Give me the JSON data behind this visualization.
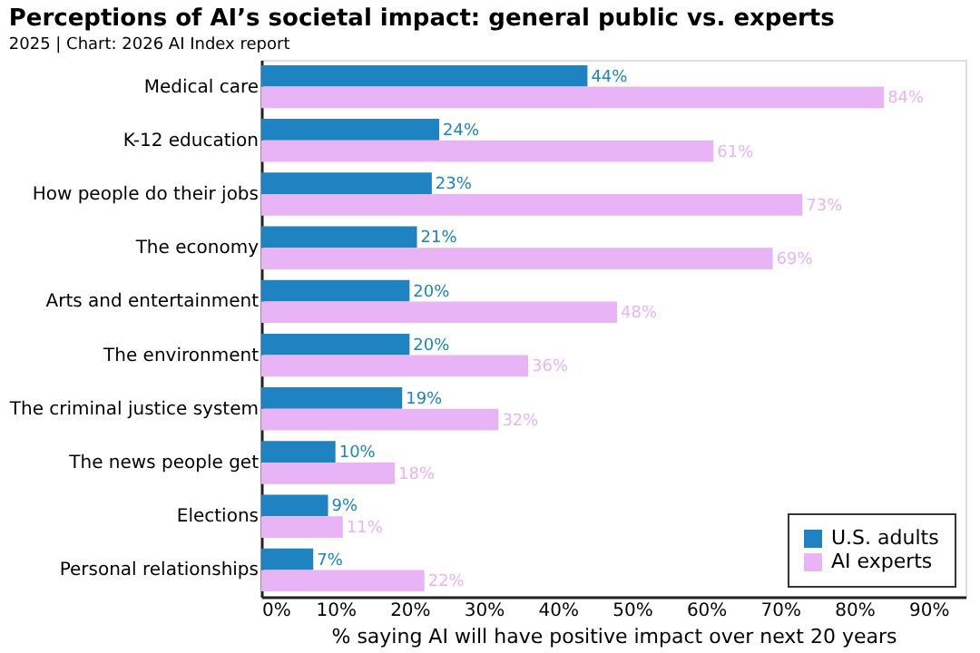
{
  "chart_data": {
    "type": "bar",
    "orientation": "horizontal",
    "title": "Perceptions of AI’s societal impact: general public vs. experts",
    "subtitle": "2025 | Chart: 2026 AI Index report",
    "xlabel": "% saying AI will have positive impact over next 20 years",
    "categories": [
      "Medical care",
      "K-12 education",
      "How people do their jobs",
      "The economy",
      "Arts and entertainment",
      "The environment",
      "The criminal justice system",
      "The news people get",
      "Elections",
      "Personal relationships"
    ],
    "series": [
      {
        "name": "U.S. adults",
        "color": "#1f83c2",
        "values": [
          44,
          24,
          23,
          21,
          20,
          20,
          19,
          10,
          9,
          7
        ],
        "value_labels": [
          "44%",
          "24%",
          "23%",
          "21%",
          "20%",
          "20%",
          "19%",
          "10%",
          "9%",
          "7%"
        ]
      },
      {
        "name": "AI experts",
        "color": "#e8b4f5",
        "values": [
          84,
          61,
          73,
          69,
          48,
          36,
          32,
          18,
          11,
          22
        ],
        "value_labels": [
          "84%",
          "61%",
          "73%",
          "69%",
          "48%",
          "36%",
          "32%",
          "18%",
          "11%",
          "22%"
        ]
      }
    ],
    "xlim": [
      0,
      95
    ],
    "xticks": [
      {
        "value": 0,
        "label": "0%"
      },
      {
        "value": 10,
        "label": "10%"
      },
      {
        "value": 20,
        "label": "20%"
      },
      {
        "value": 30,
        "label": "30%"
      },
      {
        "value": 40,
        "label": "40%"
      },
      {
        "value": 50,
        "label": "50%"
      },
      {
        "value": 60,
        "label": "60%"
      },
      {
        "value": 70,
        "label": "70%"
      },
      {
        "value": 80,
        "label": "80%"
      },
      {
        "value": 90,
        "label": "90%"
      }
    ],
    "grid": false,
    "legend": "bottom right"
  }
}
